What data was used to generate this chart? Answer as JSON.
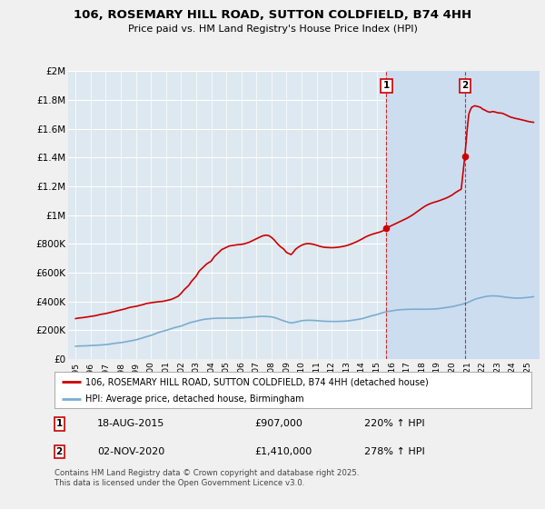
{
  "title": "106, ROSEMARY HILL ROAD, SUTTON COLDFIELD, B74 4HH",
  "subtitle": "Price paid vs. HM Land Registry's House Price Index (HPI)",
  "line1_color": "#cc0000",
  "line2_color": "#7aadcf",
  "fig_bg_color": "#f0f0f0",
  "plot_bg_color": "#dde8f0",
  "shade_color": "#ccddf0",
  "grid_color": "#ffffff",
  "ylim": [
    0,
    2000000
  ],
  "yticks": [
    0,
    200000,
    400000,
    600000,
    800000,
    1000000,
    1200000,
    1400000,
    1600000,
    1800000,
    2000000
  ],
  "ytick_labels": [
    "£0",
    "£200K",
    "£400K",
    "£600K",
    "£800K",
    "£1M",
    "£1.2M",
    "£1.4M",
    "£1.6M",
    "£1.8M",
    "£2M"
  ],
  "xlim_start": 1994.5,
  "xlim_end": 2025.8,
  "marker1_x": 2015.63,
  "marker1_y": 907000,
  "marker1_label": "1",
  "marker1_date": "18-AUG-2015",
  "marker1_price": "£907,000",
  "marker1_hpi": "220% ↑ HPI",
  "marker2_x": 2020.84,
  "marker2_y": 1410000,
  "marker2_label": "2",
  "marker2_date": "02-NOV-2020",
  "marker2_price": "£1,410,000",
  "marker2_hpi": "278% ↑ HPI",
  "legend_line1": "106, ROSEMARY HILL ROAD, SUTTON COLDFIELD, B74 4HH (detached house)",
  "legend_line2": "HPI: Average price, detached house, Birmingham",
  "footer": "Contains HM Land Registry data © Crown copyright and database right 2025.\nThis data is licensed under the Open Government Licence v3.0.",
  "red_house_prices": [
    [
      1995.0,
      280000
    ],
    [
      1995.1,
      282000
    ],
    [
      1995.3,
      285000
    ],
    [
      1995.5,
      287000
    ],
    [
      1995.7,
      290000
    ],
    [
      1996.0,
      295000
    ],
    [
      1996.3,
      300000
    ],
    [
      1996.5,
      305000
    ],
    [
      1996.7,
      310000
    ],
    [
      1997.0,
      315000
    ],
    [
      1997.2,
      320000
    ],
    [
      1997.5,
      328000
    ],
    [
      1997.7,
      333000
    ],
    [
      1998.0,
      340000
    ],
    [
      1998.3,
      348000
    ],
    [
      1998.5,
      355000
    ],
    [
      1998.7,
      360000
    ],
    [
      1999.0,
      365000
    ],
    [
      1999.2,
      370000
    ],
    [
      1999.5,
      378000
    ],
    [
      1999.7,
      385000
    ],
    [
      2000.0,
      390000
    ],
    [
      2000.2,
      393000
    ],
    [
      2000.5,
      397000
    ],
    [
      2000.8,
      400000
    ],
    [
      2001.0,
      405000
    ],
    [
      2001.3,
      412000
    ],
    [
      2001.5,
      420000
    ],
    [
      2001.8,
      435000
    ],
    [
      2002.0,
      455000
    ],
    [
      2002.2,
      480000
    ],
    [
      2002.5,
      510000
    ],
    [
      2002.7,
      540000
    ],
    [
      2003.0,
      575000
    ],
    [
      2003.2,
      610000
    ],
    [
      2003.5,
      640000
    ],
    [
      2003.7,
      660000
    ],
    [
      2004.0,
      680000
    ],
    [
      2004.2,
      710000
    ],
    [
      2004.5,
      740000
    ],
    [
      2004.7,
      760000
    ],
    [
      2005.0,
      775000
    ],
    [
      2005.2,
      785000
    ],
    [
      2005.5,
      790000
    ],
    [
      2005.7,
      793000
    ],
    [
      2006.0,
      796000
    ],
    [
      2006.2,
      800000
    ],
    [
      2006.5,
      810000
    ],
    [
      2006.7,
      820000
    ],
    [
      2007.0,
      835000
    ],
    [
      2007.2,
      845000
    ],
    [
      2007.4,
      855000
    ],
    [
      2007.6,
      860000
    ],
    [
      2007.8,
      858000
    ],
    [
      2008.0,
      845000
    ],
    [
      2008.2,
      825000
    ],
    [
      2008.4,
      800000
    ],
    [
      2008.6,
      780000
    ],
    [
      2008.8,
      765000
    ],
    [
      2009.0,
      740000
    ],
    [
      2009.2,
      730000
    ],
    [
      2009.3,
      725000
    ],
    [
      2009.4,
      735000
    ],
    [
      2009.5,
      748000
    ],
    [
      2009.6,
      762000
    ],
    [
      2009.8,
      778000
    ],
    [
      2010.0,
      790000
    ],
    [
      2010.2,
      798000
    ],
    [
      2010.4,
      802000
    ],
    [
      2010.6,
      800000
    ],
    [
      2010.8,
      796000
    ],
    [
      2011.0,
      790000
    ],
    [
      2011.2,
      783000
    ],
    [
      2011.4,
      778000
    ],
    [
      2011.6,
      775000
    ],
    [
      2011.8,
      774000
    ],
    [
      2012.0,
      773000
    ],
    [
      2012.2,
      774000
    ],
    [
      2012.4,
      776000
    ],
    [
      2012.6,
      779000
    ],
    [
      2012.8,
      783000
    ],
    [
      2013.0,
      788000
    ],
    [
      2013.2,
      795000
    ],
    [
      2013.4,
      803000
    ],
    [
      2013.6,
      812000
    ],
    [
      2013.8,
      822000
    ],
    [
      2014.0,
      833000
    ],
    [
      2014.2,
      845000
    ],
    [
      2014.4,
      855000
    ],
    [
      2014.6,
      863000
    ],
    [
      2014.8,
      870000
    ],
    [
      2015.0,
      876000
    ],
    [
      2015.2,
      882000
    ],
    [
      2015.4,
      890000
    ],
    [
      2015.63,
      907000
    ],
    [
      2015.8,
      918000
    ],
    [
      2016.0,
      928000
    ],
    [
      2016.2,
      938000
    ],
    [
      2016.4,
      948000
    ],
    [
      2016.6,
      958000
    ],
    [
      2016.8,
      968000
    ],
    [
      2017.0,
      978000
    ],
    [
      2017.2,
      990000
    ],
    [
      2017.4,
      1003000
    ],
    [
      2017.6,
      1018000
    ],
    [
      2017.8,
      1033000
    ],
    [
      2018.0,
      1048000
    ],
    [
      2018.2,
      1062000
    ],
    [
      2018.4,
      1073000
    ],
    [
      2018.6,
      1082000
    ],
    [
      2018.8,
      1089000
    ],
    [
      2019.0,
      1095000
    ],
    [
      2019.2,
      1102000
    ],
    [
      2019.4,
      1110000
    ],
    [
      2019.6,
      1118000
    ],
    [
      2019.8,
      1128000
    ],
    [
      2020.0,
      1140000
    ],
    [
      2020.2,
      1155000
    ],
    [
      2020.4,
      1168000
    ],
    [
      2020.6,
      1180000
    ],
    [
      2020.84,
      1410000
    ],
    [
      2021.0,
      1600000
    ],
    [
      2021.1,
      1700000
    ],
    [
      2021.2,
      1730000
    ],
    [
      2021.3,
      1750000
    ],
    [
      2021.5,
      1760000
    ],
    [
      2021.7,
      1755000
    ],
    [
      2021.9,
      1748000
    ],
    [
      2022.0,
      1738000
    ],
    [
      2022.2,
      1728000
    ],
    [
      2022.3,
      1722000
    ],
    [
      2022.4,
      1718000
    ],
    [
      2022.5,
      1715000
    ],
    [
      2022.6,
      1718000
    ],
    [
      2022.7,
      1720000
    ],
    [
      2022.8,
      1718000
    ],
    [
      2022.9,
      1715000
    ],
    [
      2023.0,
      1712000
    ],
    [
      2023.1,
      1710000
    ],
    [
      2023.2,
      1710000
    ],
    [
      2023.3,
      1708000
    ],
    [
      2023.4,
      1705000
    ],
    [
      2023.5,
      1700000
    ],
    [
      2023.6,
      1695000
    ],
    [
      2023.7,
      1690000
    ],
    [
      2023.8,
      1685000
    ],
    [
      2023.9,
      1680000
    ],
    [
      2024.0,
      1678000
    ],
    [
      2024.1,
      1675000
    ],
    [
      2024.2,
      1672000
    ],
    [
      2024.3,
      1670000
    ],
    [
      2024.4,
      1668000
    ],
    [
      2024.5,
      1665000
    ],
    [
      2024.6,
      1663000
    ],
    [
      2024.7,
      1660000
    ],
    [
      2024.8,
      1658000
    ],
    [
      2024.9,
      1655000
    ],
    [
      2025.0,
      1652000
    ],
    [
      2025.2,
      1648000
    ],
    [
      2025.4,
      1645000
    ]
  ],
  "blue_hpi_prices": [
    [
      1995.0,
      88000
    ],
    [
      1995.2,
      89000
    ],
    [
      1995.5,
      90000
    ],
    [
      1995.8,
      91000
    ],
    [
      1996.0,
      92500
    ],
    [
      1996.3,
      94000
    ],
    [
      1996.6,
      96000
    ],
    [
      1997.0,
      99000
    ],
    [
      1997.3,
      103000
    ],
    [
      1997.6,
      108000
    ],
    [
      1998.0,
      113000
    ],
    [
      1998.3,
      118000
    ],
    [
      1998.6,
      124000
    ],
    [
      1999.0,
      132000
    ],
    [
      1999.3,
      141000
    ],
    [
      1999.6,
      151000
    ],
    [
      2000.0,
      163000
    ],
    [
      2000.3,
      175000
    ],
    [
      2000.6,
      187000
    ],
    [
      2001.0,
      198000
    ],
    [
      2001.3,
      208000
    ],
    [
      2001.6,
      218000
    ],
    [
      2002.0,
      228000
    ],
    [
      2002.3,
      240000
    ],
    [
      2002.6,
      252000
    ],
    [
      2003.0,
      262000
    ],
    [
      2003.3,
      270000
    ],
    [
      2003.6,
      276000
    ],
    [
      2004.0,
      280000
    ],
    [
      2004.3,
      282000
    ],
    [
      2004.6,
      283000
    ],
    [
      2005.0,
      283000
    ],
    [
      2005.3,
      283000
    ],
    [
      2005.6,
      284000
    ],
    [
      2006.0,
      285000
    ],
    [
      2006.3,
      287000
    ],
    [
      2006.6,
      290000
    ],
    [
      2007.0,
      293000
    ],
    [
      2007.3,
      295000
    ],
    [
      2007.6,
      295000
    ],
    [
      2008.0,
      292000
    ],
    [
      2008.3,
      284000
    ],
    [
      2008.6,
      272000
    ],
    [
      2009.0,
      258000
    ],
    [
      2009.2,
      252000
    ],
    [
      2009.3,
      250000
    ],
    [
      2009.4,
      251000
    ],
    [
      2009.6,
      255000
    ],
    [
      2009.8,
      260000
    ],
    [
      2010.0,
      265000
    ],
    [
      2010.3,
      268000
    ],
    [
      2010.6,
      268000
    ],
    [
      2011.0,
      266000
    ],
    [
      2011.3,
      263000
    ],
    [
      2011.6,
      261000
    ],
    [
      2012.0,
      260000
    ],
    [
      2012.3,
      260000
    ],
    [
      2012.6,
      261000
    ],
    [
      2013.0,
      263000
    ],
    [
      2013.3,
      267000
    ],
    [
      2013.6,
      272000
    ],
    [
      2014.0,
      279000
    ],
    [
      2014.3,
      288000
    ],
    [
      2014.6,
      298000
    ],
    [
      2015.0,
      308000
    ],
    [
      2015.3,
      318000
    ],
    [
      2015.6,
      327000
    ],
    [
      2016.0,
      334000
    ],
    [
      2016.3,
      339000
    ],
    [
      2016.6,
      342000
    ],
    [
      2017.0,
      344000
    ],
    [
      2017.3,
      345000
    ],
    [
      2017.6,
      345000
    ],
    [
      2018.0,
      345000
    ],
    [
      2018.3,
      345000
    ],
    [
      2018.6,
      346000
    ],
    [
      2019.0,
      348000
    ],
    [
      2019.3,
      352000
    ],
    [
      2019.6,
      357000
    ],
    [
      2020.0,
      363000
    ],
    [
      2020.3,
      370000
    ],
    [
      2020.6,
      378000
    ],
    [
      2021.0,
      390000
    ],
    [
      2021.3,
      405000
    ],
    [
      2021.6,
      418000
    ],
    [
      2022.0,
      428000
    ],
    [
      2022.3,
      435000
    ],
    [
      2022.6,
      438000
    ],
    [
      2023.0,
      437000
    ],
    [
      2023.3,
      433000
    ],
    [
      2023.6,
      428000
    ],
    [
      2024.0,
      424000
    ],
    [
      2024.3,
      422000
    ],
    [
      2024.6,
      423000
    ],
    [
      2025.0,
      427000
    ],
    [
      2025.4,
      432000
    ]
  ]
}
